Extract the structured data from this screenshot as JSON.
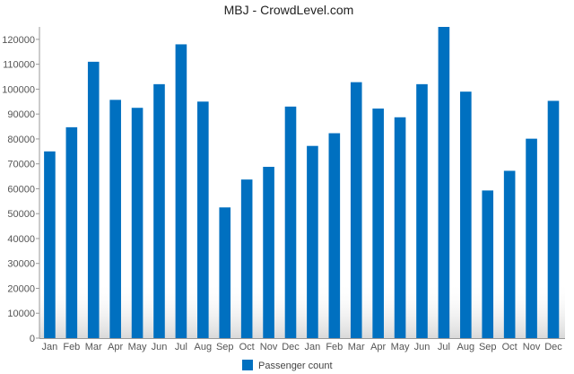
{
  "chart_data": {
    "type": "bar",
    "title": "MBJ - CrowdLevel.com",
    "xlabel": "",
    "ylabel": "",
    "categories": [
      "Jan",
      "Feb",
      "Mar",
      "Apr",
      "May",
      "Jun",
      "Jul",
      "Aug",
      "Sep",
      "Oct",
      "Nov",
      "Dec",
      "Jan",
      "Feb",
      "Mar",
      "Apr",
      "May",
      "Jun",
      "Jul",
      "Aug",
      "Sep",
      "Oct",
      "Nov",
      "Dec"
    ],
    "series": [
      {
        "name": "Passenger count",
        "color": "#0070c0",
        "values": [
          75000,
          84700,
          111000,
          95700,
          92500,
          102000,
          118000,
          95000,
          52500,
          63700,
          68800,
          93000,
          77200,
          82300,
          102800,
          92200,
          88700,
          102000,
          125000,
          99000,
          59300,
          67200,
          80100,
          95300
        ]
      }
    ],
    "ylim": [
      0,
      125000
    ],
    "yticks": [
      "0",
      "10000",
      "20000",
      "30000",
      "40000",
      "50000",
      "60000",
      "70000",
      "80000",
      "90000",
      "100000",
      "110000",
      "120000"
    ],
    "grid": false,
    "legend": "bottom"
  }
}
